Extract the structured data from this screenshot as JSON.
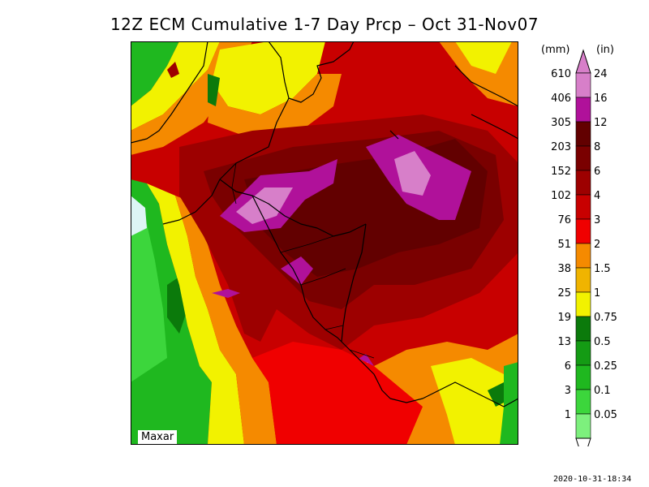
{
  "title": "12Z ECM Cumulative 1-7 Day Prcp – Oct 31-Nov07",
  "watermark": "Maxar",
  "timestamp": "2020-10-31-18:34",
  "legend": {
    "mm_header": "(mm)",
    "in_header": "(in)",
    "levels": [
      {
        "mm": "610",
        "in": "24",
        "color": "#d77fc9"
      },
      {
        "mm": "406",
        "in": "16",
        "color": "#b0119a"
      },
      {
        "mm": "305",
        "in": "12",
        "color": "#620000"
      },
      {
        "mm": "203",
        "in": "8",
        "color": "#7a0000"
      },
      {
        "mm": "152",
        "in": "6",
        "color": "#9d0000"
      },
      {
        "mm": "102",
        "in": "4",
        "color": "#c80000"
      },
      {
        "mm": "76",
        "in": "3",
        "color": "#f00000"
      },
      {
        "mm": "51",
        "in": "2",
        "color": "#f58a00"
      },
      {
        "mm": "38",
        "in": "1.5",
        "color": "#f0b400"
      },
      {
        "mm": "25",
        "in": "1",
        "color": "#f2f200"
      },
      {
        "mm": "19",
        "in": "0.75",
        "color": "#0b7a0b"
      },
      {
        "mm": "13",
        "in": "0.5",
        "color": "#149b14"
      },
      {
        "mm": "6",
        "in": "0.25",
        "color": "#1fb81f"
      },
      {
        "mm": "3",
        "in": "0.1",
        "color": "#3cd63c"
      },
      {
        "mm": "1",
        "in": "0.05",
        "color": "#7df07d"
      }
    ]
  }
}
